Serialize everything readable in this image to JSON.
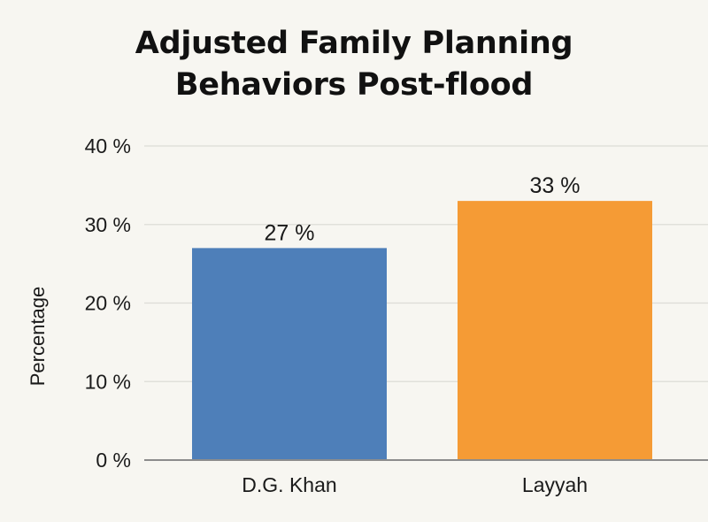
{
  "chart_data": {
    "type": "bar",
    "title_lines": [
      "Adjusted Family Planning",
      "Behaviors Post-flood"
    ],
    "xlabel": "",
    "ylabel": "Percentage",
    "categories": [
      "D.G. Khan",
      "Layyah"
    ],
    "values": [
      27,
      33
    ],
    "data_labels": [
      "27 %",
      "33 %"
    ],
    "ylim": [
      0,
      40
    ],
    "yticks": [
      0,
      10,
      20,
      30,
      40
    ],
    "ytick_labels": [
      "0 %",
      "10 %",
      "20 %",
      "30 %",
      "40 %"
    ],
    "grid": true,
    "legend": "none",
    "colors": [
      "#4e7fb9",
      "#f59b35"
    ],
    "grid_color": "#dcdcd6",
    "axis_color": "#8c8c8c"
  }
}
